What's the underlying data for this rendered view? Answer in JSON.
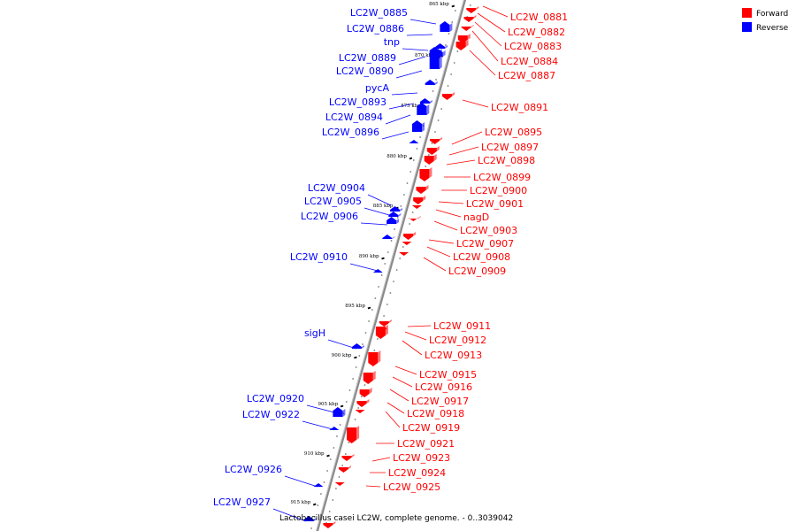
{
  "caption": "Lactobacillus casei LC2W, complete genome. - 0..3039042",
  "legend": [
    {
      "label": "Forward",
      "color": "#ff0000"
    },
    {
      "label": "Reverse",
      "color": "#0000ff"
    }
  ],
  "colors": {
    "forward": "#ff0000",
    "reverse": "#0000ff",
    "axis": "#888888"
  },
  "ticks": [
    "865 kbp",
    "870 kbp",
    "875 kbp",
    "880 kbp",
    "885 kbp",
    "890 kbp",
    "895 kbp",
    "900 kbp",
    "905 kbp",
    "910 kbp",
    "915 kbp"
  ],
  "forward_genes": [
    "LC2W_0881",
    "LC2W_0882",
    "LC2W_0883",
    "LC2W_0884",
    "LC2W_0887",
    "LC2W_0891",
    "LC2W_0895",
    "LC2W_0897",
    "LC2W_0898",
    "LC2W_0899",
    "LC2W_0900",
    "LC2W_0901",
    "nagD",
    "LC2W_0903",
    "LC2W_0907",
    "LC2W_0908",
    "LC2W_0909",
    "LC2W_0911",
    "LC2W_0912",
    "LC2W_0913",
    "LC2W_0915",
    "LC2W_0916",
    "LC2W_0917",
    "LC2W_0918",
    "LC2W_0919",
    "LC2W_0921",
    "LC2W_0923",
    "LC2W_0924",
    "LC2W_0925"
  ],
  "reverse_genes": [
    "LC2W_0885",
    "LC2W_0886",
    "tnp",
    "LC2W_0889",
    "LC2W_0890",
    "pycA",
    "LC2W_0893",
    "LC2W_0894",
    "LC2W_0896",
    "LC2W_0904",
    "LC2W_0905",
    "LC2W_0906",
    "LC2W_0910",
    "sigH",
    "LC2W_0920",
    "LC2W_0922",
    "LC2W_0926",
    "LC2W_0927"
  ]
}
